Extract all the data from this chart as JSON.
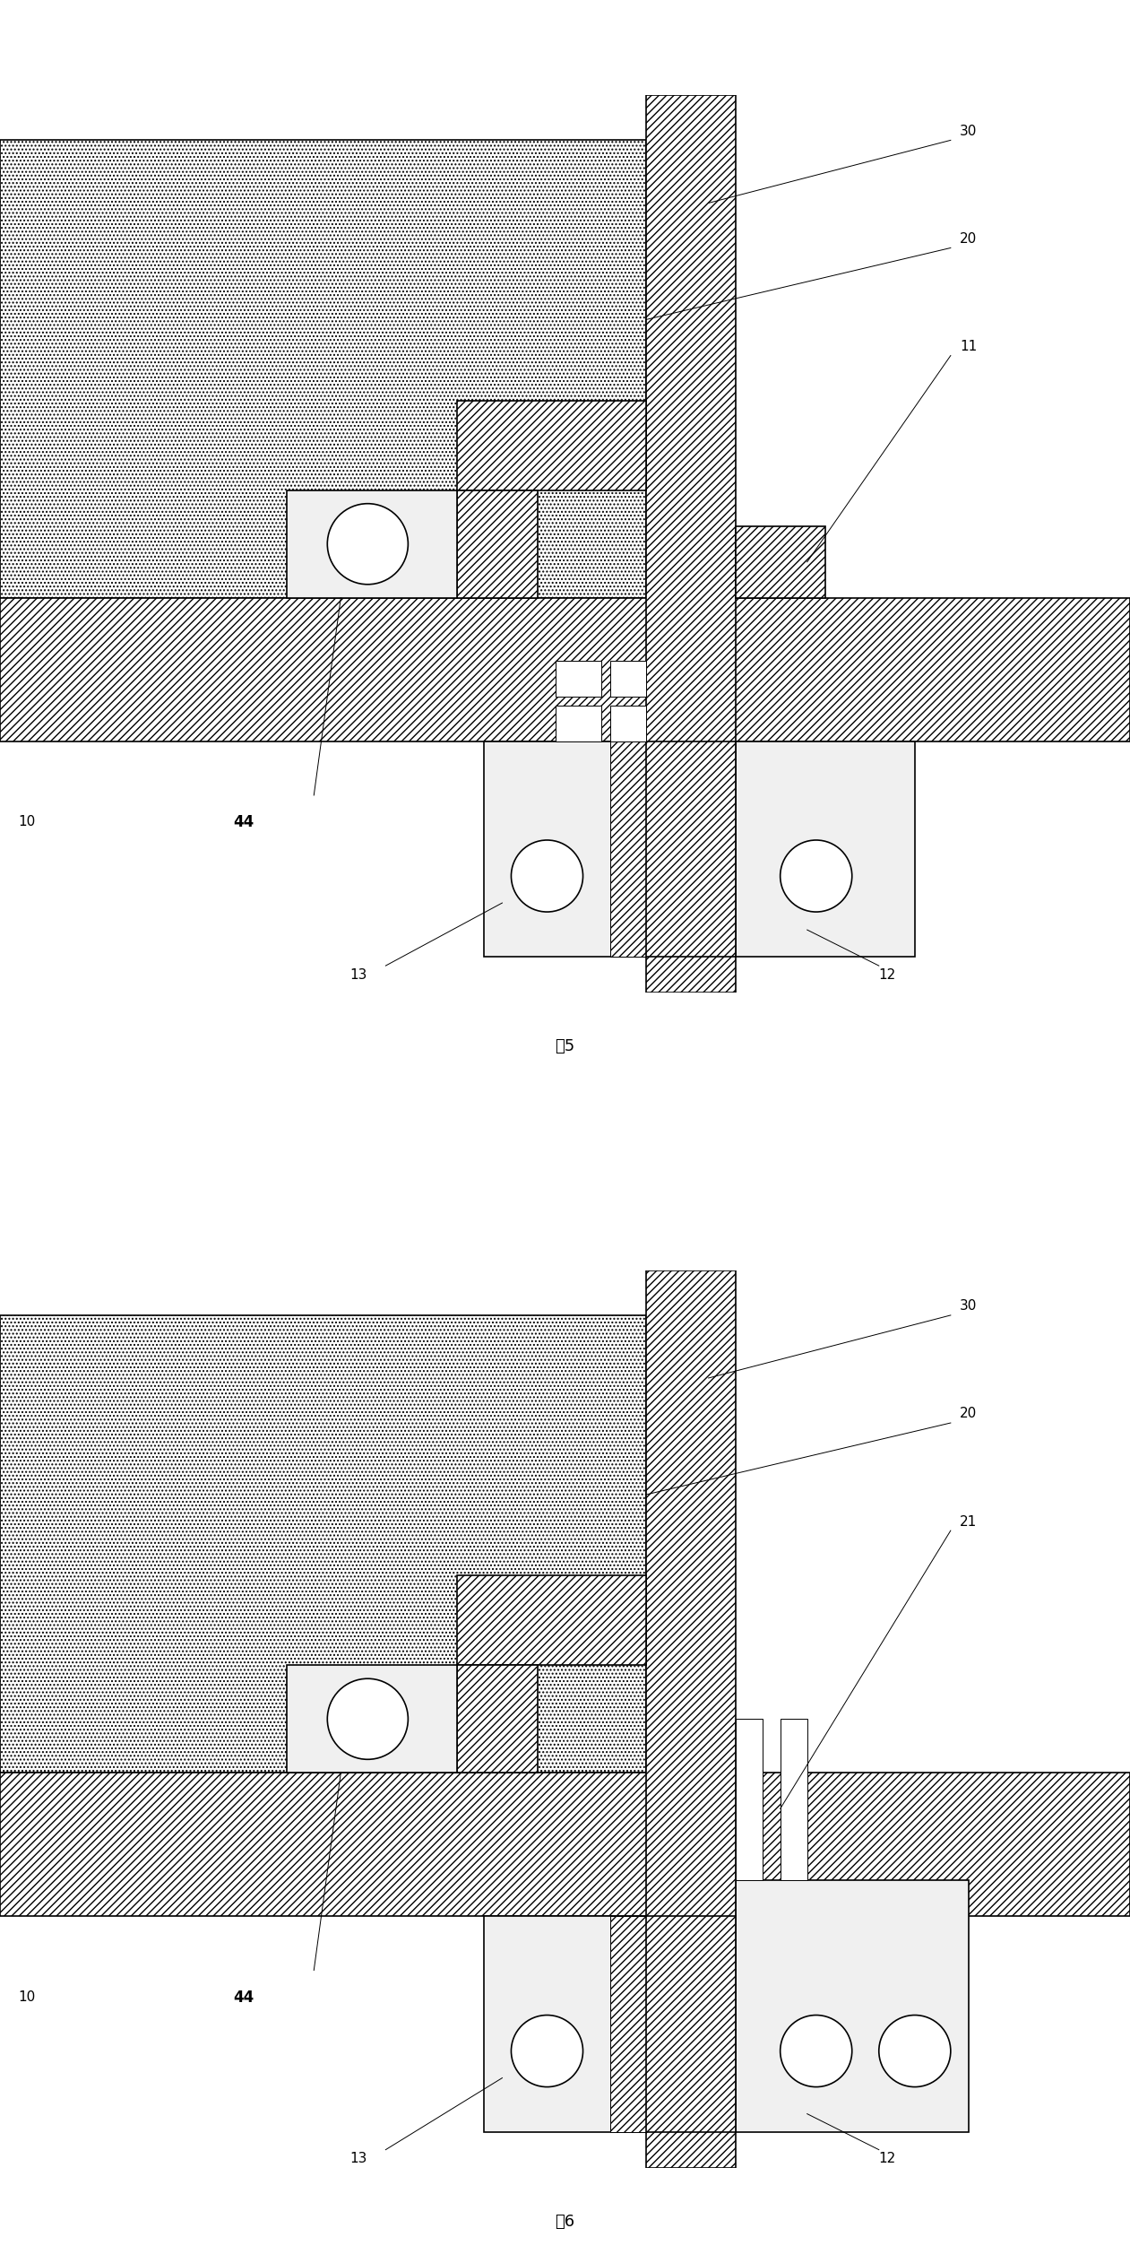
{
  "fig_width": 12.61,
  "fig_height": 25.24,
  "dpi": 100,
  "fig5_title": "图5",
  "fig6_title": "图6",
  "lw": 1.2,
  "lw_thin": 0.7,
  "hatch_diag": "////",
  "hatch_dot": "....",
  "fc_hatch": "#ffffff",
  "fc_dot": "#f0f0f0",
  "fc_gray": "#d8d8d8",
  "fc_white": "#ffffff"
}
